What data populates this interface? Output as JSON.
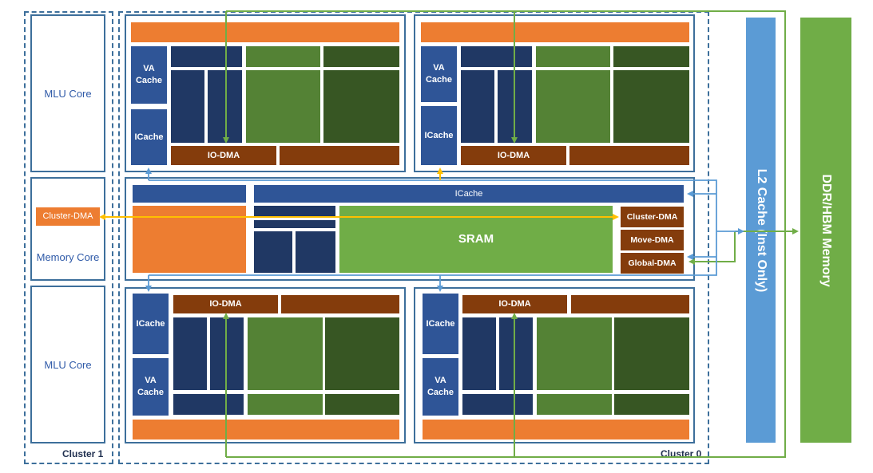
{
  "labels": {
    "cluster1": "Cluster 1",
    "cluster0": "Cluster 0",
    "mlu_core_top": "MLU Core",
    "memory_core": "Memory Core",
    "mlu_core_bottom": "MLU Core",
    "cluster_dma_left": "Cluster-DMA",
    "va_cache": "VA\nCache",
    "icache": "ICache",
    "io_dma": "IO-DMA",
    "shared_icache": "ICache",
    "sram": "SRAM",
    "cluster_dma": "Cluster-DMA",
    "move_dma": "Move-DMA",
    "global_dma": "Global-DMA",
    "l2_cache": "L2 Cache (Inst Only)",
    "ddr": "DDR/HBM Memory"
  },
  "colors": {
    "dashed_border": "#3d6f9b",
    "orange": "#ed7d31",
    "dark_blue": "#203864",
    "mid_blue": "#2f5597",
    "green": "#548235",
    "dark_green": "#375623",
    "bright_green": "#70ad47",
    "brown": "#843c0c",
    "l2_blue": "#5b9bd5",
    "arrow_yellow": "#ffc000",
    "arrow_green": "#70ad47",
    "arrow_blue": "#5b9bd5"
  }
}
